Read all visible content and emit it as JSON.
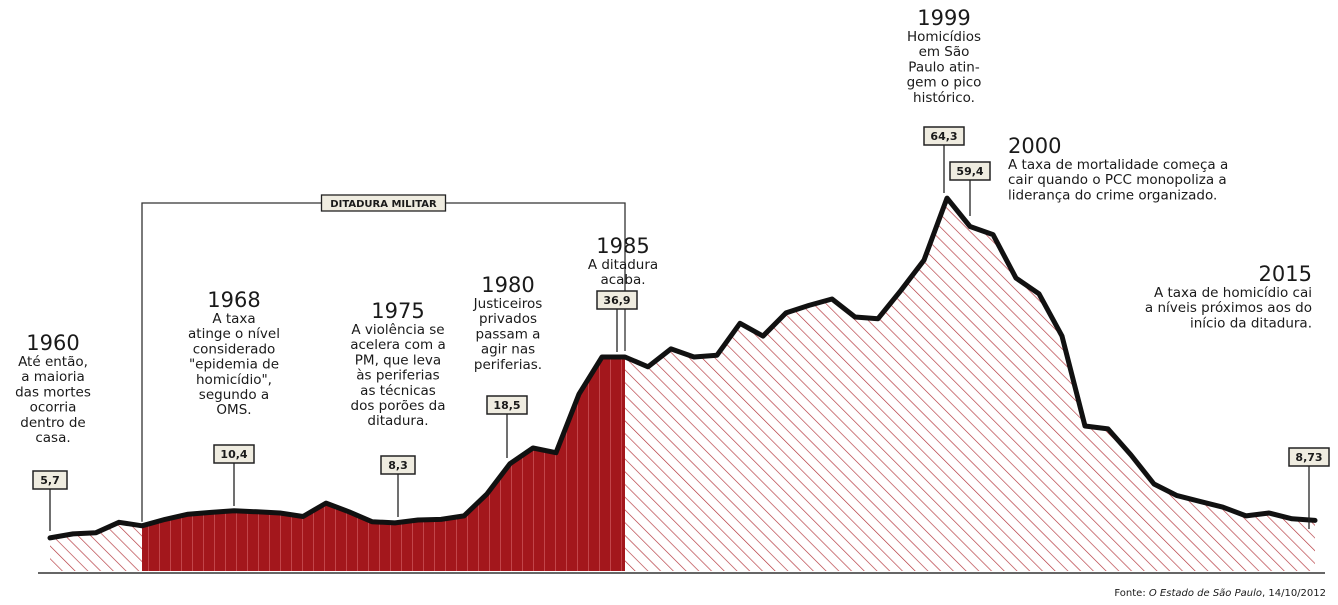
{
  "chart_data": {
    "type": "area",
    "title": "",
    "xlabel": "",
    "ylabel": "",
    "x_range": [
      1960,
      2015
    ],
    "ylim": [
      0,
      70
    ],
    "grid": false,
    "series": [
      {
        "x": [
          1960,
          1961,
          1962,
          1963,
          1964,
          1965,
          1966,
          1967,
          1968,
          1969,
          1970,
          1971,
          1972,
          1973,
          1974,
          1975,
          1976,
          1977,
          1978,
          1979,
          1980,
          1981,
          1982,
          1983,
          1984,
          1985,
          1986,
          1987,
          1988,
          1989,
          1990,
          1991,
          1992,
          1993,
          1994,
          1995,
          1996,
          1997,
          1998,
          1999,
          2000,
          2001,
          2002,
          2003,
          2004,
          2005,
          2006,
          2007,
          2008,
          2009,
          2010,
          2011,
          2012,
          2013,
          2014,
          2015
        ],
        "y": [
          5.7,
          6.4,
          6.6,
          8.4,
          7.8,
          8.9,
          9.8,
          10.1,
          10.4,
          10.2,
          10.0,
          9.4,
          11.7,
          10.2,
          8.5,
          8.3,
          8.8,
          8.9,
          9.5,
          13.3,
          18.5,
          21.2,
          20.4,
          30.5,
          36.9,
          36.9,
          35.2,
          38.3,
          36.9,
          37.2,
          42.7,
          40.5,
          44.5,
          45.8,
          46.9,
          43.8,
          43.5,
          48.4,
          53.6,
          64.3,
          59.4,
          58.0,
          50.5,
          47.8,
          40.5,
          25.0,
          24.5,
          20.0,
          15.0,
          13.0,
          12.0,
          11.0,
          9.5,
          10.0,
          9.0,
          8.73
        ]
      }
    ],
    "highlight": {
      "label": "DITADURA MILITAR",
      "from": 1964,
      "to": 1985
    },
    "callouts": [
      {
        "year": "1960",
        "x": 1960,
        "value": "5,7",
        "lines": [
          "Até então,",
          "a maioria",
          "das mortes",
          "ocorria",
          "dentro de",
          "casa."
        ]
      },
      {
        "year": "1968",
        "x": 1968,
        "value": "10,4",
        "lines": [
          "A taxa",
          "atinge o nível",
          "considerado",
          "\"epidemia de",
          "homicídio\",",
          "segundo a",
          "OMS."
        ]
      },
      {
        "year": "1975",
        "x": 1975,
        "value": "8,3",
        "lines": [
          "A violência se",
          "acelera com a",
          "PM, que leva",
          "às periferias",
          "as técnicas",
          "dos porões da",
          "ditadura."
        ]
      },
      {
        "year": "1980",
        "x": 1980,
        "value": "18,5",
        "lines": [
          "Justiceiros",
          "privados",
          "passam a",
          "agir nas",
          "periferias."
        ]
      },
      {
        "year": "1985",
        "x": 1985,
        "value": "36,9",
        "lines": [
          "A ditadura",
          "acaba."
        ]
      },
      {
        "year": "1999",
        "x": 1999,
        "value": "64,3",
        "lines": [
          "Homicídios",
          "em São",
          "Paulo atin-",
          "gem o pico",
          "histórico."
        ]
      },
      {
        "year": "2000",
        "x": 2000,
        "value": "59,4",
        "lines": [
          "A taxa de mortalidade começa a",
          "cair quando o PCC monopoliza a",
          "liderança do crime organizado."
        ]
      },
      {
        "year": "2015",
        "x": 2015,
        "value": "8,73",
        "lines": [
          "A taxa de homicídio cai",
          "a níveis próximos aos do",
          "início da ditadura."
        ]
      }
    ],
    "colors": {
      "line": "#111111",
      "dictatorship_fill": "#a3171c",
      "hatch": "#b3343a",
      "label_box_fill": "#efece0"
    }
  },
  "source": {
    "prefix": "Fonte: ",
    "publication": "O Estado de São Paulo",
    "date": ", 14/10/2012"
  }
}
